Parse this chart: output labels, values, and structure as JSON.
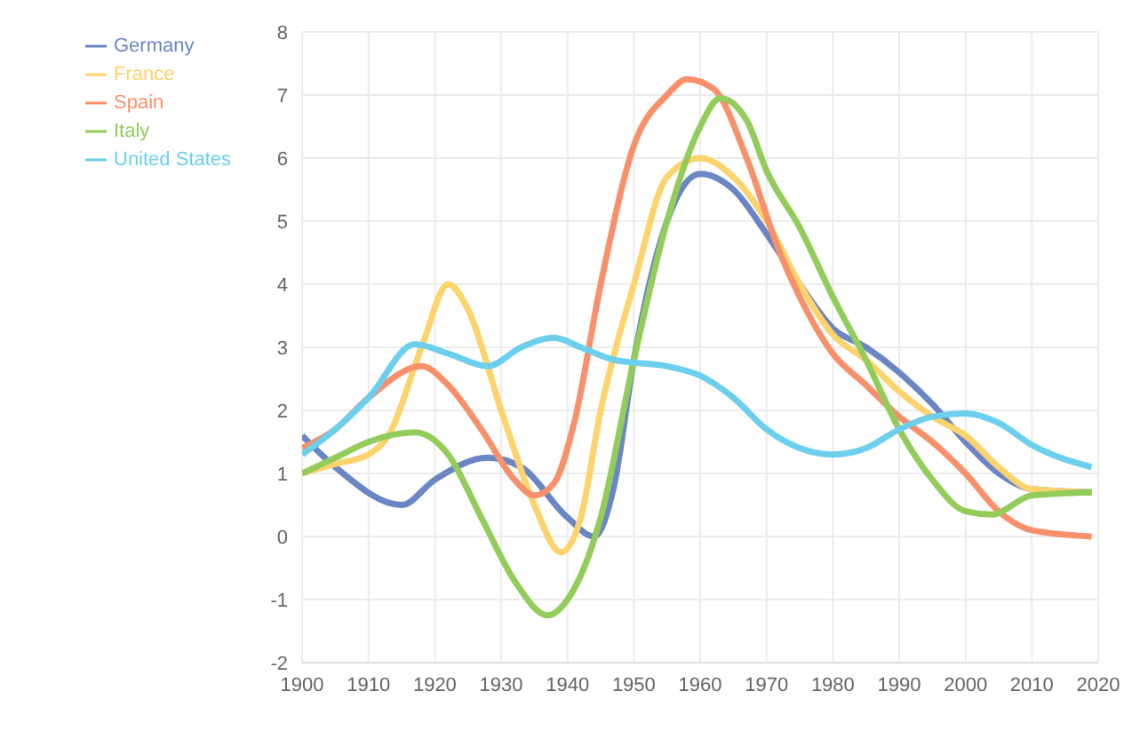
{
  "chart_data": {
    "type": "line",
    "xlim": [
      1900,
      2020
    ],
    "xticks": [
      1900,
      1910,
      1920,
      1930,
      1940,
      1950,
      1960,
      1970,
      1980,
      1990,
      2000,
      2010,
      2020
    ],
    "ylim": [
      -2,
      8
    ],
    "yticks": [
      -2,
      -1,
      0,
      1,
      2,
      3,
      4,
      5,
      6,
      7,
      8
    ],
    "grid": true,
    "legend": "top left",
    "marker": "none",
    "line_style": "solid",
    "series": [
      {
        "name": "Germany",
        "color": "#6b86c4",
        "x": [
          1900,
          1905,
          1915,
          1920,
          1928,
          1933,
          1940,
          1944,
          1947,
          1950,
          1955,
          1960,
          1965,
          1970,
          1975,
          1980,
          1985,
          1990,
          1995,
          2000,
          2005,
          2010,
          2019
        ],
        "values": [
          1.6,
          1.1,
          0.5,
          0.9,
          1.25,
          1.1,
          0.3,
          0.0,
          0.8,
          2.8,
          5.0,
          5.75,
          5.5,
          4.8,
          4.0,
          3.3,
          3.0,
          2.6,
          2.1,
          1.5,
          1.0,
          0.75,
          0.7
        ]
      },
      {
        "name": "France",
        "color": "#fdd36b",
        "x": [
          1900,
          1905,
          1910,
          1913,
          1918,
          1922,
          1925,
          1930,
          1935,
          1939,
          1942,
          1945,
          1950,
          1955,
          1960,
          1965,
          1970,
          1975,
          1980,
          1985,
          1990,
          1995,
          2000,
          2005,
          2010,
          2019
        ],
        "values": [
          1.0,
          1.15,
          1.3,
          1.6,
          3.0,
          4.0,
          3.6,
          2.0,
          0.5,
          -0.25,
          0.3,
          2.0,
          4.0,
          5.7,
          6.0,
          5.7,
          5.0,
          4.0,
          3.2,
          2.8,
          2.3,
          1.9,
          1.6,
          1.1,
          0.75,
          0.7
        ]
      },
      {
        "name": "Spain",
        "color": "#f7906b",
        "x": [
          1900,
          1905,
          1910,
          1918,
          1922,
          1927,
          1932,
          1935,
          1938,
          1941,
          1945,
          1950,
          1955,
          1958,
          1962,
          1967,
          1972,
          1975,
          1980,
          1985,
          1990,
          1995,
          2000,
          2005,
          2010,
          2019
        ],
        "values": [
          1.4,
          1.7,
          2.2,
          2.7,
          2.4,
          1.7,
          0.9,
          0.65,
          0.85,
          1.8,
          4.0,
          6.2,
          7.0,
          7.25,
          7.1,
          6.0,
          4.5,
          3.8,
          2.9,
          2.4,
          1.9,
          1.5,
          1.0,
          0.4,
          0.1,
          0.0
        ]
      },
      {
        "name": "Italy",
        "color": "#93cc5b",
        "x": [
          1900,
          1905,
          1910,
          1917,
          1922,
          1927,
          1932,
          1937,
          1940,
          1945,
          1950,
          1955,
          1960,
          1963,
          1967,
          1970,
          1975,
          1980,
          1985,
          1990,
          1995,
          2000,
          2004,
          2010,
          2019
        ],
        "values": [
          1.0,
          1.25,
          1.5,
          1.65,
          1.3,
          0.3,
          -0.7,
          -1.25,
          -1.0,
          0.3,
          2.8,
          5.0,
          6.5,
          6.95,
          6.6,
          5.8,
          4.9,
          3.8,
          2.8,
          1.7,
          0.9,
          0.4,
          0.35,
          0.65,
          0.7
        ]
      },
      {
        "name": "United States",
        "color": "#6ccfee",
        "x": [
          1900,
          1905,
          1910,
          1917,
          1922,
          1928,
          1933,
          1938,
          1942,
          1947,
          1955,
          1960,
          1965,
          1970,
          1975,
          1980,
          1985,
          1990,
          1995,
          2000,
          2005,
          2010,
          2019
        ],
        "values": [
          1.3,
          1.7,
          2.2,
          3.05,
          2.9,
          2.7,
          3.0,
          3.15,
          3.0,
          2.8,
          2.7,
          2.55,
          2.2,
          1.7,
          1.4,
          1.3,
          1.4,
          1.7,
          1.9,
          1.95,
          1.8,
          1.45,
          1.1
        ]
      }
    ]
  }
}
